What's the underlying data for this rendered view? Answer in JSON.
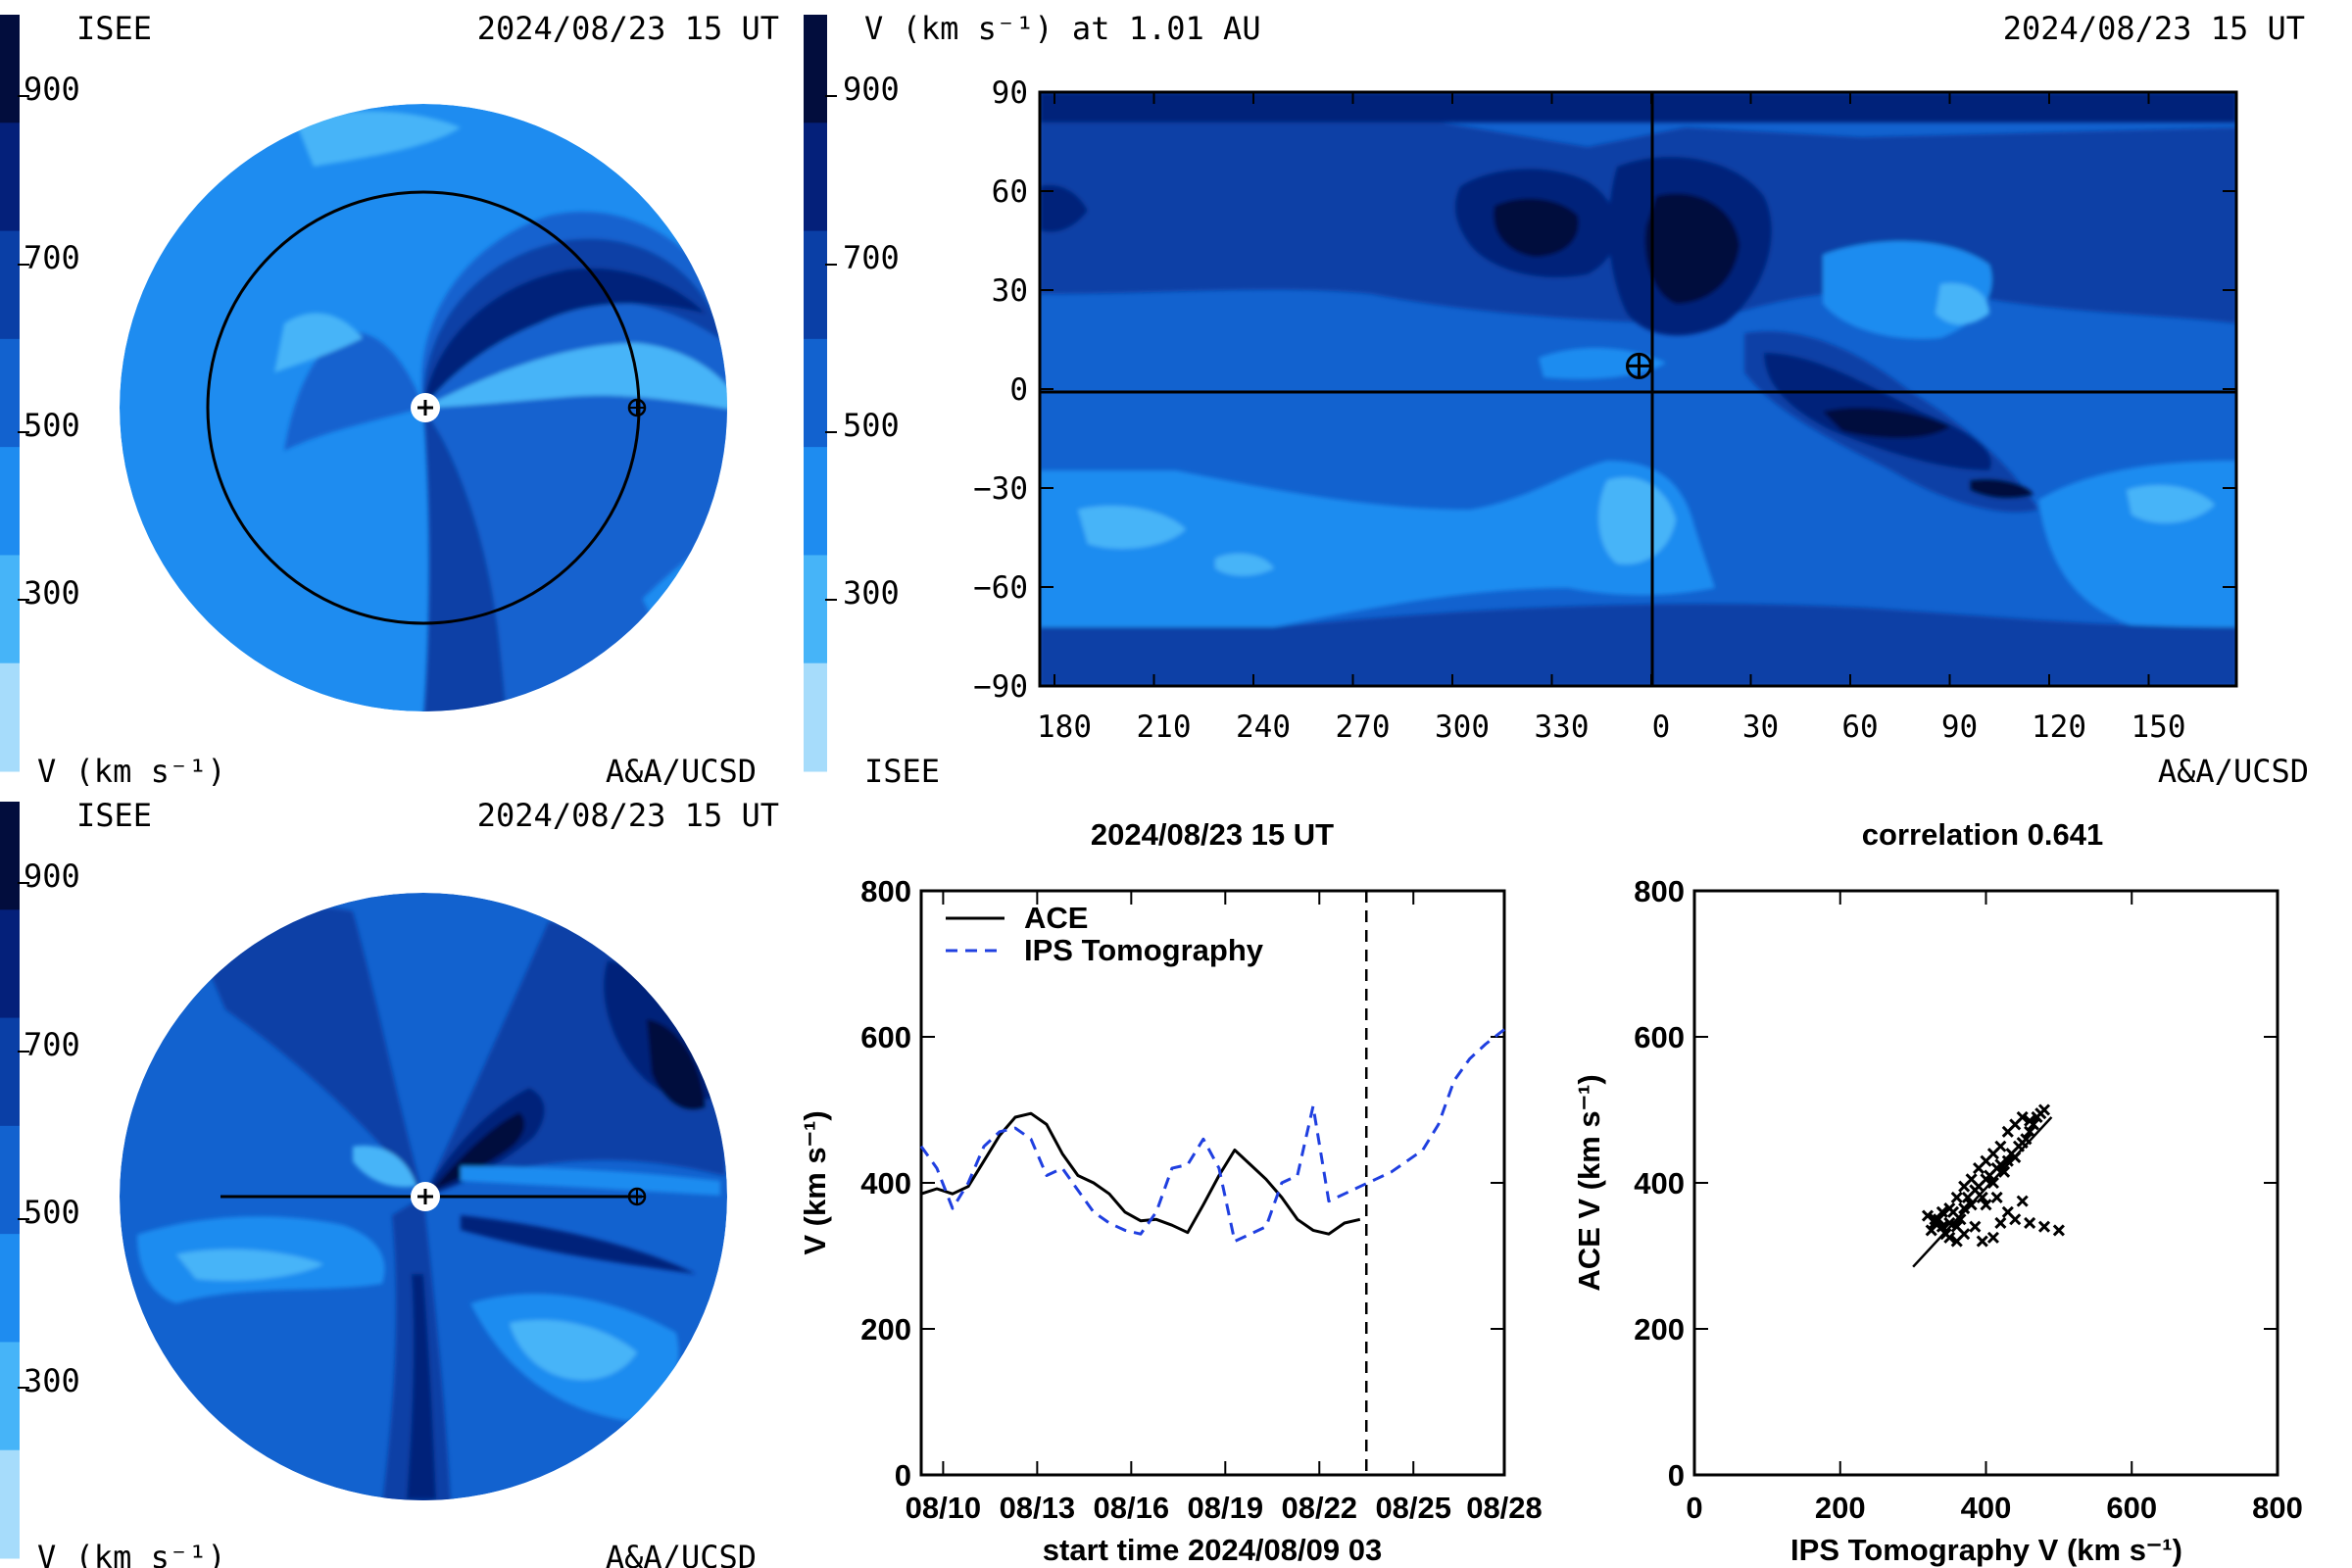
{
  "colors": {
    "c1": "#a6dcfb",
    "c2": "#46b4f8",
    "c3": "#1e8cf0",
    "c4": "#1262cf",
    "c5": "#0a3fa6",
    "c6": "#04207a",
    "c7": "#020d3d",
    "ips": "#1f3fe0"
  },
  "colorbar": {
    "ticks": [
      "900",
      "700",
      "500",
      "300"
    ]
  },
  "panel_tl": {
    "left_label": "ISEE",
    "date": "2024/08/23 15 UT",
    "unit": "V (km s⁻¹)",
    "credit": "A&A/UCSD"
  },
  "panel_bl": {
    "left_label": "ISEE",
    "date": "2024/08/23 15 UT",
    "unit": "V (km s⁻¹)",
    "credit": "A&A/UCSD"
  },
  "panel_tr": {
    "title": "V (km s⁻¹) at 1.01 AU",
    "date": "2024/08/23 15 UT",
    "left_label": "ISEE",
    "credit": "A&A/UCSD"
  },
  "chart_data": [
    {
      "type": "heatmap",
      "title": "V (km s⁻¹) at 1.01 AU",
      "x_ticks": [
        "180",
        "210",
        "240",
        "270",
        "300",
        "330",
        "0",
        "30",
        "60",
        "90",
        "120",
        "150"
      ],
      "y_ticks": [
        "90",
        "60",
        "30",
        "0",
        "−30",
        "−60",
        "−90"
      ],
      "ylim": [
        -90,
        90
      ],
      "earth_marker": {
        "longitude": -4,
        "latitude": 7
      }
    },
    {
      "type": "line",
      "title": "2024/08/23 15 UT",
      "xlabel": "start time 2024/08/09 03",
      "ylabel": "V (km s⁻¹)",
      "ylim": [
        0,
        800
      ],
      "xlim": [
        0.3,
        18.9
      ],
      "x_ticks": [
        {
          "t": 1,
          "label": "08/10"
        },
        {
          "t": 4,
          "label": "08/13"
        },
        {
          "t": 7,
          "label": "08/16"
        },
        {
          "t": 10,
          "label": "08/19"
        },
        {
          "t": 13,
          "label": "08/22"
        },
        {
          "t": 16,
          "label": "08/25"
        },
        {
          "t": 19,
          "label": "08/28"
        }
      ],
      "y_ticks": [
        "0",
        "200",
        "400",
        "600",
        "800"
      ],
      "now_marker": 14.5,
      "series": [
        {
          "name": "ACE",
          "x": [
            0.3,
            0.8,
            1.3,
            1.8,
            2.3,
            2.8,
            3.3,
            3.8,
            4.3,
            4.8,
            5.3,
            5.8,
            6.3,
            6.8,
            7.3,
            7.8,
            8.3,
            8.8,
            9.3,
            9.8,
            10.3,
            10.8,
            11.3,
            11.8,
            12.3,
            12.8,
            13.3,
            13.8,
            14.3
          ],
          "y": [
            385,
            392,
            385,
            395,
            430,
            465,
            490,
            495,
            480,
            440,
            410,
            400,
            385,
            360,
            348,
            350,
            342,
            332,
            370,
            410,
            445,
            425,
            405,
            380,
            350,
            335,
            330,
            345,
            350
          ]
        },
        {
          "name": "IPS Tomography",
          "x": [
            0.3,
            0.8,
            1.3,
            1.8,
            2.3,
            2.8,
            3.3,
            3.8,
            4.3,
            4.8,
            5.3,
            5.8,
            6.3,
            6.8,
            7.3,
            7.8,
            8.3,
            8.8,
            9.3,
            9.8,
            10.3,
            10.8,
            11.3,
            11.8,
            12.3,
            12.8,
            13.3,
            13.8,
            14.3,
            14.8,
            15.3,
            15.8,
            16.3,
            16.8,
            17.3,
            17.8,
            18.3,
            18.9
          ],
          "y": [
            450,
            420,
            365,
            400,
            450,
            470,
            475,
            460,
            410,
            420,
            390,
            360,
            345,
            335,
            330,
            360,
            420,
            425,
            460,
            420,
            320,
            330,
            340,
            400,
            410,
            505,
            375,
            385,
            395,
            405,
            415,
            430,
            445,
            480,
            540,
            570,
            590,
            610
          ]
        }
      ]
    },
    {
      "type": "scatter",
      "title": "correlation 0.641",
      "xlabel": "IPS Tomography V (km s⁻¹)",
      "ylabel": "ACE V (km s⁻¹)",
      "xlim": [
        0,
        800
      ],
      "ylim": [
        0,
        800
      ],
      "x_ticks": [
        "0",
        "200",
        "400",
        "600",
        "800"
      ],
      "y_ticks": [
        "0",
        "200",
        "400",
        "600",
        "800"
      ],
      "fit_line": [
        [
          300,
          285
        ],
        [
          490,
          490
        ]
      ],
      "points": [
        [
          320,
          355
        ],
        [
          330,
          345
        ],
        [
          335,
          350
        ],
        [
          340,
          340
        ],
        [
          325,
          335
        ],
        [
          345,
          330
        ],
        [
          350,
          345
        ],
        [
          355,
          360
        ],
        [
          360,
          340
        ],
        [
          365,
          350
        ],
        [
          370,
          365
        ],
        [
          375,
          380
        ],
        [
          380,
          370
        ],
        [
          385,
          390
        ],
        [
          390,
          395
        ],
        [
          395,
          380
        ],
        [
          400,
          405
        ],
        [
          405,
          410
        ],
        [
          410,
          400
        ],
        [
          415,
          420
        ],
        [
          420,
          425
        ],
        [
          425,
          415
        ],
        [
          430,
          430
        ],
        [
          435,
          440
        ],
        [
          440,
          435
        ],
        [
          445,
          450
        ],
        [
          450,
          455
        ],
        [
          455,
          460
        ],
        [
          460,
          470
        ],
        [
          465,
          480
        ],
        [
          470,
          490
        ],
        [
          475,
          495
        ],
        [
          480,
          500
        ],
        [
          430,
          470
        ],
        [
          440,
          480
        ],
        [
          450,
          490
        ],
        [
          460,
          485
        ],
        [
          410,
          440
        ],
        [
          420,
          450
        ],
        [
          400,
          430
        ],
        [
          390,
          420
        ],
        [
          380,
          405
        ],
        [
          370,
          395
        ],
        [
          360,
          380
        ],
        [
          350,
          365
        ],
        [
          340,
          360
        ],
        [
          330,
          350
        ],
        [
          420,
          345
        ],
        [
          440,
          350
        ],
        [
          460,
          345
        ],
        [
          480,
          340
        ],
        [
          500,
          335
        ],
        [
          395,
          320
        ],
        [
          410,
          325
        ],
        [
          430,
          360
        ],
        [
          450,
          375
        ],
        [
          360,
          320
        ],
        [
          370,
          330
        ],
        [
          385,
          340
        ],
        [
          350,
          325
        ],
        [
          400,
          370
        ],
        [
          415,
          380
        ]
      ]
    }
  ]
}
